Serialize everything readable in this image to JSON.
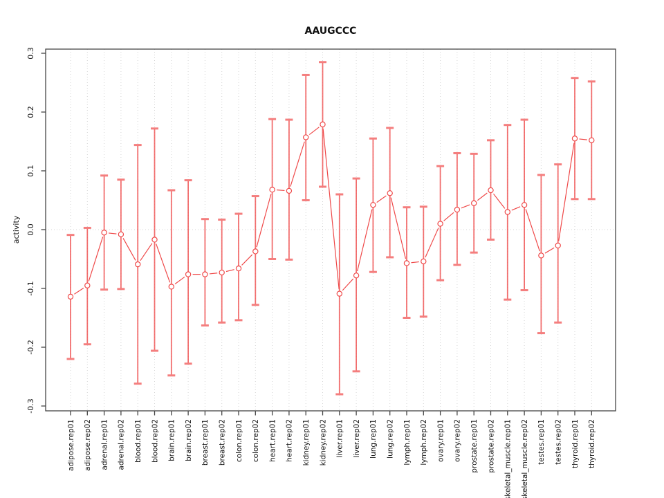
{
  "title": "AAUGCCC",
  "ylabel": "activity",
  "colors": {
    "series_line": "#ef4848",
    "error_bar": "#f05656",
    "error_cap": "#f47e7e",
    "gridline": "#d4d4d4",
    "zero_line": "#d4d4d4",
    "box_border": "#454545",
    "tick": "#454545",
    "text": "#111111",
    "background": "#ffffff",
    "marker_fill": "#ffffff"
  },
  "chart_data": {
    "type": "line",
    "title": "AAUGCCC",
    "xlabel": "",
    "ylabel": "activity",
    "ylim": [
      -0.31,
      0.31
    ],
    "yticks": [
      -0.3,
      -0.2,
      -0.1,
      0,
      0.1,
      0.2,
      0.3
    ],
    "grid": "vertical dotted gridline at every category; dotted horizontal line at y=0",
    "legend": "none",
    "marker": "open-circle",
    "line_type": "points connected by segments with gaps (R type='b')",
    "error_bars": true,
    "categories": [
      "adipose.rep01",
      "adipose.rep02",
      "adrenal.rep01",
      "adrenal.rep02",
      "blood.rep01",
      "blood.rep02",
      "brain.rep01",
      "brain.rep02",
      "breast.rep01",
      "breast.rep02",
      "colon.rep01",
      "colon.rep02",
      "heart.rep01",
      "heart.rep02",
      "kidney.rep01",
      "kidney.rep02",
      "liver.rep01",
      "liver.rep02",
      "lung.rep01",
      "lung.rep02",
      "lymph.rep01",
      "lymph.rep02",
      "ovary.rep01",
      "ovary.rep02",
      "prostate.rep01",
      "prostate.rep02",
      "skeletal_muscle.rep01",
      "skeletal_muscle.rep02",
      "testes.rep01",
      "testes.rep02",
      "thyroid.rep01",
      "thyroid.rep02"
    ],
    "series": [
      {
        "name": "activity",
        "values": [
          -0.114,
          -0.095,
          -0.005,
          -0.008,
          -0.059,
          -0.017,
          -0.097,
          -0.076,
          -0.076,
          -0.073,
          -0.066,
          -0.037,
          0.068,
          0.066,
          0.157,
          0.179,
          -0.109,
          -0.078,
          0.042,
          0.062,
          -0.057,
          -0.054,
          0.01,
          0.034,
          0.045,
          0.067,
          0.03,
          0.042,
          -0.044,
          -0.027,
          0.155,
          0.152
        ],
        "err_lo": [
          -0.22,
          -0.195,
          -0.102,
          -0.101,
          -0.262,
          -0.206,
          -0.248,
          -0.228,
          -0.163,
          -0.158,
          -0.154,
          -0.128,
          -0.05,
          -0.051,
          0.05,
          0.073,
          -0.28,
          -0.241,
          -0.072,
          -0.047,
          -0.15,
          -0.148,
          -0.086,
          -0.06,
          -0.039,
          -0.017,
          -0.119,
          -0.103,
          -0.176,
          -0.158,
          0.052,
          0.052
        ],
        "err_hi": [
          -0.009,
          0.003,
          0.092,
          0.085,
          0.144,
          0.172,
          0.067,
          0.084,
          0.018,
          0.017,
          0.027,
          0.057,
          0.188,
          0.187,
          0.263,
          0.285,
          0.06,
          0.087,
          0.155,
          0.173,
          0.038,
          0.039,
          0.108,
          0.13,
          0.129,
          0.152,
          0.178,
          0.187,
          0.093,
          0.111,
          0.258,
          0.252
        ]
      }
    ]
  }
}
